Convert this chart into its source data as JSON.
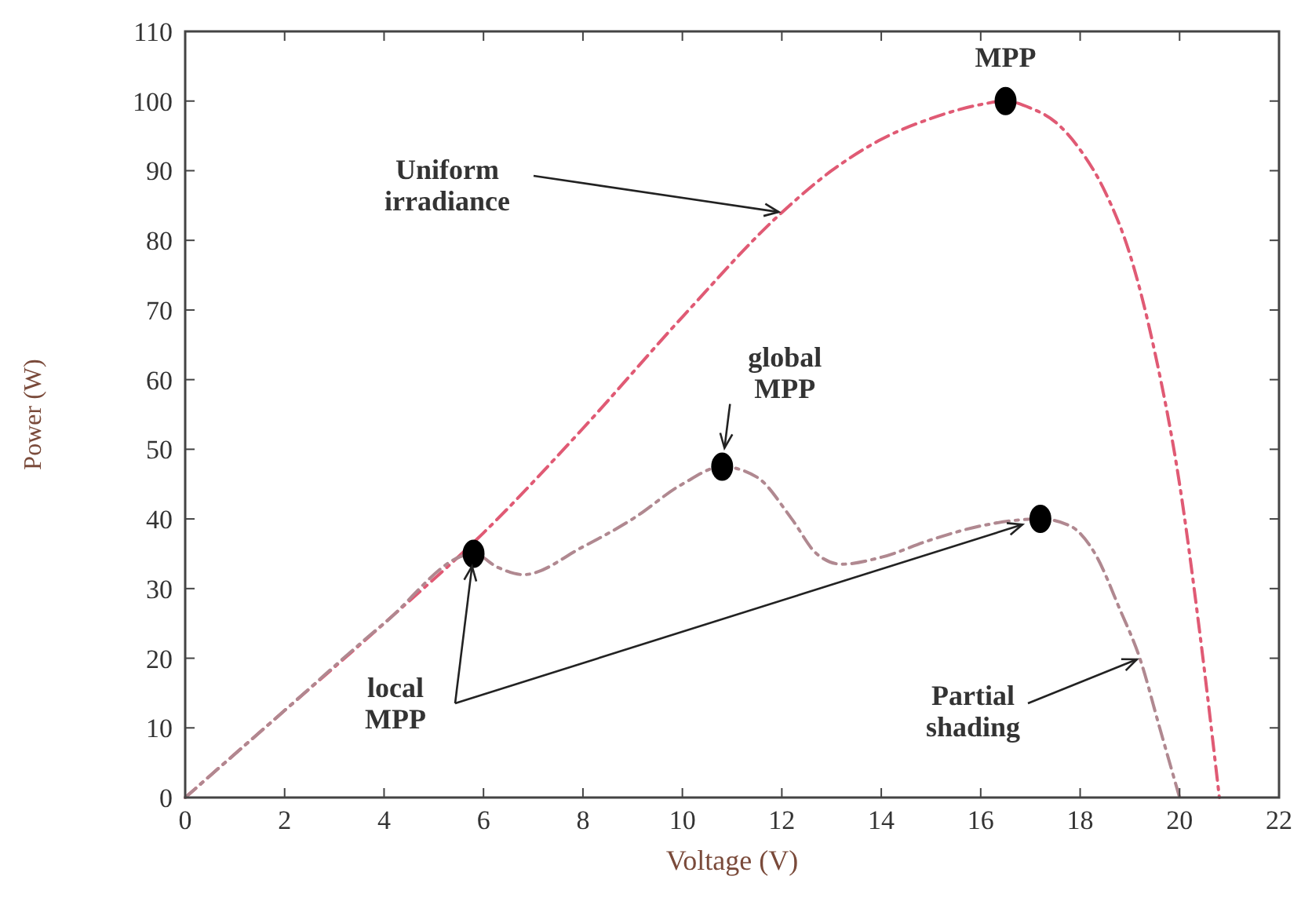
{
  "chart_data": {
    "type": "line",
    "xlabel": "Voltage (V)",
    "ylabel": "Power (W)",
    "xlim": [
      0,
      22
    ],
    "xticks": [
      0,
      2,
      4,
      6,
      8,
      10,
      12,
      14,
      16,
      18,
      20,
      22
    ],
    "ylim": [
      0,
      110
    ],
    "yticks": [
      0,
      10,
      20,
      30,
      40,
      50,
      60,
      70,
      80,
      90,
      100,
      110
    ],
    "grid": false,
    "line_style": "dashed",
    "series": [
      {
        "color": "#e05a74",
        "x": [
          0,
          2,
          4,
          6,
          8,
          10,
          12,
          13,
          14,
          15,
          16,
          16.5,
          17,
          17.5,
          18,
          18.5,
          19,
          19.5,
          20,
          20.4,
          20.8
        ],
        "values": [
          0,
          12.5,
          25,
          38,
          53,
          69,
          84,
          90,
          94.5,
          97.5,
          99.5,
          100,
          99,
          97,
          93,
          87,
          78,
          64,
          45,
          24,
          0
        ]
      },
      {
        "color": "#b08890",
        "x": [
          0,
          2,
          4,
          5.8,
          6.3,
          6.8,
          8,
          9,
          10,
          10.8,
          11.5,
          12.2,
          12.7,
          13.2,
          14,
          15,
          16,
          17.2,
          17.8,
          18.3,
          18.8,
          19.2,
          19.6,
          20
        ],
        "values": [
          0,
          12.5,
          25,
          35,
          33,
          32,
          36,
          40,
          45,
          47.5,
          46,
          40,
          35,
          33.5,
          34.5,
          37,
          39,
          40,
          39,
          35,
          27,
          20,
          10,
          0
        ]
      },
      {
        "type": "scatter",
        "color": "#000000",
        "marker": "circle",
        "x": [
          16.5,
          10.8,
          5.8,
          17.2
        ],
        "values": [
          100,
          47.5,
          35,
          40
        ]
      }
    ],
    "annotations": [
      {
        "text": "MPP",
        "x": 16.5,
        "y": 100
      },
      {
        "text": "Uniform irradiance",
        "x": 12,
        "y": 84
      },
      {
        "text": "global MPP",
        "x": 10.8,
        "y": 47.5
      },
      {
        "text": "local MPP",
        "x": 5.8,
        "y": 35
      },
      {
        "text": "Partial shading",
        "x": 19.2,
        "y": 20
      }
    ]
  }
}
